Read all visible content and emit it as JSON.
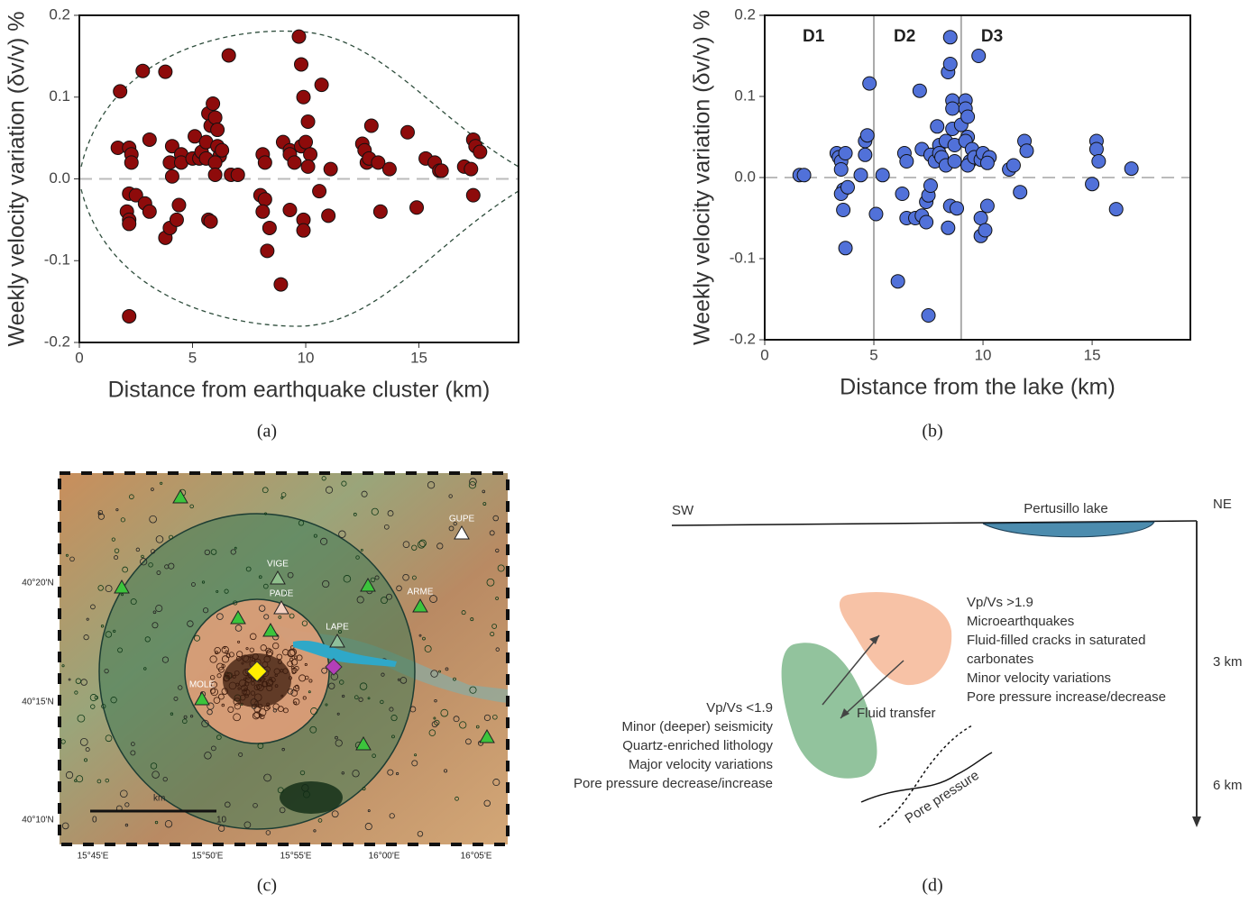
{
  "chart_data": [
    {
      "type": "scatter",
      "caption": "(a)",
      "xlabel": "Distance from earthquake cluster (km)",
      "ylabel": "Weekly velocity variation (δv/v) %",
      "color": "#8e0b0b",
      "xlim": [
        0,
        19.4
      ],
      "xticks": [
        0,
        5,
        10,
        15
      ],
      "ylim": [
        -0.2,
        0.2
      ],
      "yticks": [
        -0.2,
        -0.1,
        {
          "value": 0,
          "label": "0.0"
        },
        0.1,
        0.2
      ],
      "x": [
        1.8,
        1.7,
        2.2,
        2.3,
        2.3,
        2.2,
        2.1,
        2.2,
        2.2,
        2.5,
        2.2,
        2.8,
        2.9,
        3.1,
        3.1,
        3.8,
        3.8,
        4.0,
        4.1,
        4.0,
        4.1,
        4.4,
        4.5,
        4.5,
        4.3,
        5.0,
        5.1,
        5.3,
        5.4,
        5.6,
        5.6,
        5.7,
        5.8,
        5.9,
        6.0,
        6.1,
        6.1,
        6.2,
        6.0,
        6.3,
        5.7,
        5.8,
        6.0,
        6.6,
        6.7,
        7.0,
        8.1,
        8.2,
        8.0,
        8.2,
        8.1,
        8.3,
        8.4,
        8.9,
        9.0,
        9.3,
        9.3,
        9.3,
        9.5,
        9.7,
        9.8,
        9.9,
        9.8,
        9.9,
        9.9,
        10.0,
        10.1,
        10.2,
        10.1,
        10.6,
        10.7,
        11.0,
        11.1,
        12.5,
        12.6,
        12.7,
        12.8,
        12.9,
        13.3,
        13.2,
        13.7,
        14.5,
        14.9,
        15.3,
        15.7,
        15.9,
        16.0,
        17.0,
        17.3,
        17.4,
        17.5,
        17.4,
        17.7
      ],
      "values": [
        0.107,
        0.038,
        0.038,
        0.03,
        0.02,
        -0.018,
        -0.04,
        -0.05,
        -0.055,
        -0.02,
        -0.168,
        0.132,
        -0.03,
        -0.04,
        0.048,
        0.131,
        -0.072,
        -0.06,
        0.04,
        0.02,
        0.003,
        -0.032,
        0.03,
        0.02,
        -0.05,
        0.025,
        0.052,
        0.025,
        0.033,
        0.045,
        0.025,
        0.08,
        0.065,
        0.092,
        0.075,
        0.06,
        0.04,
        0.028,
        0.02,
        0.035,
        -0.05,
        -0.052,
        0.005,
        0.151,
        0.005,
        0.005,
        0.03,
        0.02,
        -0.02,
        -0.025,
        -0.04,
        -0.088,
        -0.06,
        -0.129,
        0.045,
        0.035,
        0.03,
        -0.038,
        0.02,
        0.174,
        0.14,
        0.1,
        0.04,
        -0.05,
        -0.063,
        0.045,
        0.07,
        0.03,
        0.015,
        -0.015,
        0.115,
        -0.045,
        0.012,
        0.043,
        0.035,
        0.02,
        0.025,
        0.065,
        -0.04,
        0.02,
        0.012,
        0.057,
        -0.035,
        0.025,
        0.02,
        0.01,
        0.01,
        0.015,
        0.012,
        0.048,
        0.04,
        -0.02,
        0.033
      ]
    },
    {
      "type": "scatter",
      "caption": "(b)",
      "xlabel": "Distance from the lake (km)",
      "ylabel": "Weekly velocity variation (δv/v) %",
      "color": "#5171d9",
      "xlim": [
        0,
        19.5
      ],
      "xticks": [
        0,
        5,
        10,
        15
      ],
      "ylim": [
        -0.2,
        0.2
      ],
      "yticks": [
        -0.2,
        -0.1,
        {
          "value": 0,
          "label": "0.0"
        },
        0.1,
        0.2
      ],
      "dividers": [
        5,
        9
      ],
      "region_labels": [
        "D1",
        "D2",
        "D3"
      ],
      "x": [
        1.6,
        1.8,
        3.3,
        3.4,
        3.5,
        3.5,
        3.7,
        3.6,
        3.5,
        3.6,
        3.7,
        3.8,
        4.4,
        4.6,
        4.7,
        4.6,
        4.8,
        5.1,
        5.4,
        6.1,
        6.3,
        6.4,
        6.5,
        6.5,
        6.9,
        7.1,
        7.2,
        7.2,
        7.4,
        7.4,
        7.5,
        7.5,
        7.6,
        7.6,
        7.8,
        7.9,
        8.0,
        8.0,
        8.1,
        8.3,
        8.3,
        8.4,
        8.5,
        8.5,
        8.6,
        8.6,
        8.6,
        8.7,
        8.7,
        8.5,
        8.4,
        8.8,
        9.0,
        9.2,
        9.2,
        9.3,
        9.3,
        9.2,
        9.5,
        9.4,
        9.3,
        9.6,
        9.8,
        9.9,
        9.9,
        9.9,
        10.1,
        10.0,
        10.2,
        10.3,
        10.2,
        11.2,
        11.4,
        11.7,
        11.9,
        12.0,
        15.0,
        15.2,
        15.2,
        15.3,
        16.1,
        16.8
      ],
      "values": [
        0.003,
        0.003,
        0.03,
        0.025,
        0.02,
        0.01,
        0.03,
        -0.015,
        -0.02,
        -0.04,
        -0.087,
        -0.012,
        0.003,
        0.045,
        0.052,
        0.028,
        0.116,
        -0.045,
        0.003,
        -0.128,
        -0.02,
        0.03,
        0.02,
        -0.05,
        -0.05,
        0.107,
        0.035,
        -0.047,
        -0.03,
        -0.055,
        -0.17,
        -0.022,
        0.028,
        -0.01,
        0.02,
        0.063,
        0.04,
        0.03,
        0.025,
        0.045,
        0.015,
        0.13,
        0.173,
        0.14,
        0.095,
        0.085,
        0.06,
        0.04,
        0.02,
        -0.035,
        -0.062,
        -0.038,
        0.065,
        0.095,
        0.085,
        0.075,
        0.05,
        0.045,
        0.035,
        0.02,
        0.015,
        0.025,
        0.15,
        0.022,
        -0.05,
        -0.072,
        -0.065,
        0.03,
        -0.035,
        0.025,
        0.018,
        0.01,
        0.015,
        -0.018,
        0.045,
        0.033,
        -0.008,
        0.045,
        0.035,
        0.02,
        -0.039,
        0.011
      ]
    }
  ],
  "map": {
    "caption": "(c)",
    "lat_labels": [
      "40°20'N",
      "40°15'N",
      "40°10'N"
    ],
    "lon_labels": [
      "15°45'E",
      "15°50'E",
      "15°55'E",
      "16°00'E",
      "16°05'E"
    ],
    "stations": [
      "GUPE",
      "VIGE",
      "PADE",
      "ARME",
      "LAPE",
      "MOLE"
    ],
    "scale": {
      "unit": "km",
      "start": "0",
      "end": "10"
    }
  },
  "diagram": {
    "caption": "(d)",
    "sw": "SW",
    "ne": "NE",
    "lake": "Pertusillo lake",
    "depths": [
      "3 km",
      "6 km"
    ],
    "shallow_body": [
      "Vp/Vs >1.9",
      "Microearthquakes",
      "Fluid-filled cracks in saturated",
      "carbonates",
      "Minor velocity variations",
      "Pore pressure increase/decrease"
    ],
    "deep_body": [
      "Vp/Vs <1.9",
      "Minor (deeper) seismicity",
      "Quartz-enriched lithology",
      "Major velocity variations",
      "Pore pressure decrease/increase"
    ],
    "fluid_transfer": "Fluid transfer",
    "pore_pressure": "Pore pressure"
  }
}
